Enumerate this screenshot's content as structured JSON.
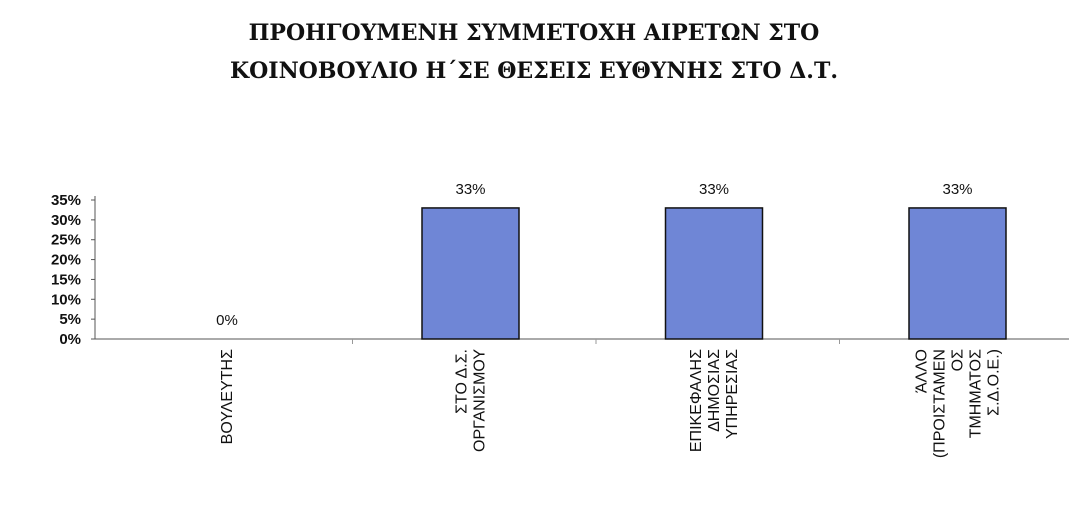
{
  "chart_data": {
    "type": "bar",
    "title": [
      "ΠΡΟΗΓΟΥΜΕΝΗ ΣΥΜΜΕΤΟΧΗ ΑΙΡΕΤΩΝ ΣΤΟ",
      "ΚΟΙΝΟΒΟΥΛΙΟ Η΄ΣΕ ΘΕΣΕΙΣ ΕΥΘΥΝΗΣ ΣΤΟ Δ.Τ."
    ],
    "categories": [
      [
        "ΒΟΥΛΕΥΤΗΣ"
      ],
      [
        "ΣΤΟ Δ.Σ.",
        "ΟΡΓΑΝΙΣΜΟΥ"
      ],
      [
        "ΕΠΙΚΕΦΑΛΗΣ",
        "ΔΗΜΟΣΙΑΣ",
        "ΥΠΗΡΕΣΙΑΣ"
      ],
      [
        "ΆΛΛΟ",
        "(ΠΡΟΙΣΤΑΜΕΝ",
        "ΟΣ",
        "ΤΜΗΜΑΤΟΣ",
        "Σ.Δ.Ο.Ε.)"
      ]
    ],
    "values": [
      0,
      33,
      33,
      33
    ],
    "data_labels": [
      "0%",
      "33%",
      "33%",
      "33%"
    ],
    "yticks": [
      "0%",
      "5%",
      "10%",
      "15%",
      "20%",
      "25%",
      "30%",
      "35%"
    ],
    "ylim": [
      0,
      35
    ],
    "bar_color": "#6f86d6",
    "bar_edge": "#111111",
    "axis_color": "#555555",
    "grid": false,
    "legend": "none",
    "xlabel": "",
    "ylabel": ""
  }
}
